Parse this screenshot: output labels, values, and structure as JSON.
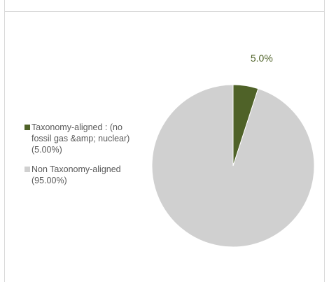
{
  "chart_data": {
    "type": "pie",
    "title": "",
    "legend_position": "left",
    "slices": [
      {
        "label": "Taxonomy-aligned : (no fossil gas &amp; nuclear) (5.00%)",
        "value": 5.0,
        "color": "#4f6228",
        "data_label": "5.0%"
      },
      {
        "label": "Non Taxonomy-aligned (95.00%)",
        "value": 95.0,
        "color": "#d0d0d0",
        "data_label": ""
      }
    ],
    "data_label_color": "#4f6228"
  }
}
